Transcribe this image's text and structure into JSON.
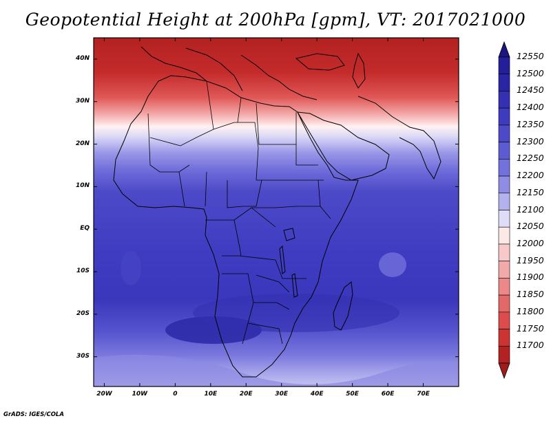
{
  "title": "Geopotential Height at 200hPa [gpm], VT: 2017021000",
  "credit": "GrADS: IGES/COLA",
  "map": {
    "lon_range": [
      -23,
      80
    ],
    "lat_range": [
      -37,
      45
    ],
    "lat_ticks": [
      {
        "value": 40,
        "label": "40N"
      },
      {
        "value": 30,
        "label": "30N"
      },
      {
        "value": 20,
        "label": "20N"
      },
      {
        "value": 10,
        "label": "10N"
      },
      {
        "value": 0,
        "label": "EQ"
      },
      {
        "value": -10,
        "label": "10S"
      },
      {
        "value": -20,
        "label": "20S"
      },
      {
        "value": -30,
        "label": "30S"
      }
    ],
    "lon_ticks": [
      {
        "value": -20,
        "label": "20W"
      },
      {
        "value": -10,
        "label": "10W"
      },
      {
        "value": 0,
        "label": "0"
      },
      {
        "value": 10,
        "label": "10E"
      },
      {
        "value": 20,
        "label": "20E"
      },
      {
        "value": 30,
        "label": "30E"
      },
      {
        "value": 40,
        "label": "40E"
      },
      {
        "value": 50,
        "label": "50E"
      },
      {
        "value": 60,
        "label": "60E"
      },
      {
        "value": 70,
        "label": "70E"
      }
    ]
  },
  "colorbar": {
    "levels": [
      {
        "label": "12550",
        "color": "#241f99"
      },
      {
        "label": "12500",
        "color": "#2a25a5"
      },
      {
        "label": "12450",
        "color": "#3430b3"
      },
      {
        "label": "12400",
        "color": "#3e3bbf"
      },
      {
        "label": "12350",
        "color": "#4d4ac8"
      },
      {
        "label": "12300",
        "color": "#5d5bd1"
      },
      {
        "label": "12250",
        "color": "#7371db"
      },
      {
        "label": "12200",
        "color": "#8e8ce4"
      },
      {
        "label": "12150",
        "color": "#b4b2ee"
      },
      {
        "label": "12100",
        "color": "#dedcf7"
      },
      {
        "label": "12050",
        "color": "#fde8e8"
      },
      {
        "label": "12000",
        "color": "#f7c9c9"
      },
      {
        "label": "11950",
        "color": "#f2a9a9"
      },
      {
        "label": "11900",
        "color": "#ec8888"
      },
      {
        "label": "11850",
        "color": "#e56868"
      },
      {
        "label": "11800",
        "color": "#dc4c4c"
      },
      {
        "label": "11750",
        "color": "#cc3434"
      },
      {
        "label": "11700",
        "color": "#b22222"
      }
    ],
    "top_arrow_color": "#1b1580",
    "bottom_arrow_color": "#a11b1b"
  }
}
